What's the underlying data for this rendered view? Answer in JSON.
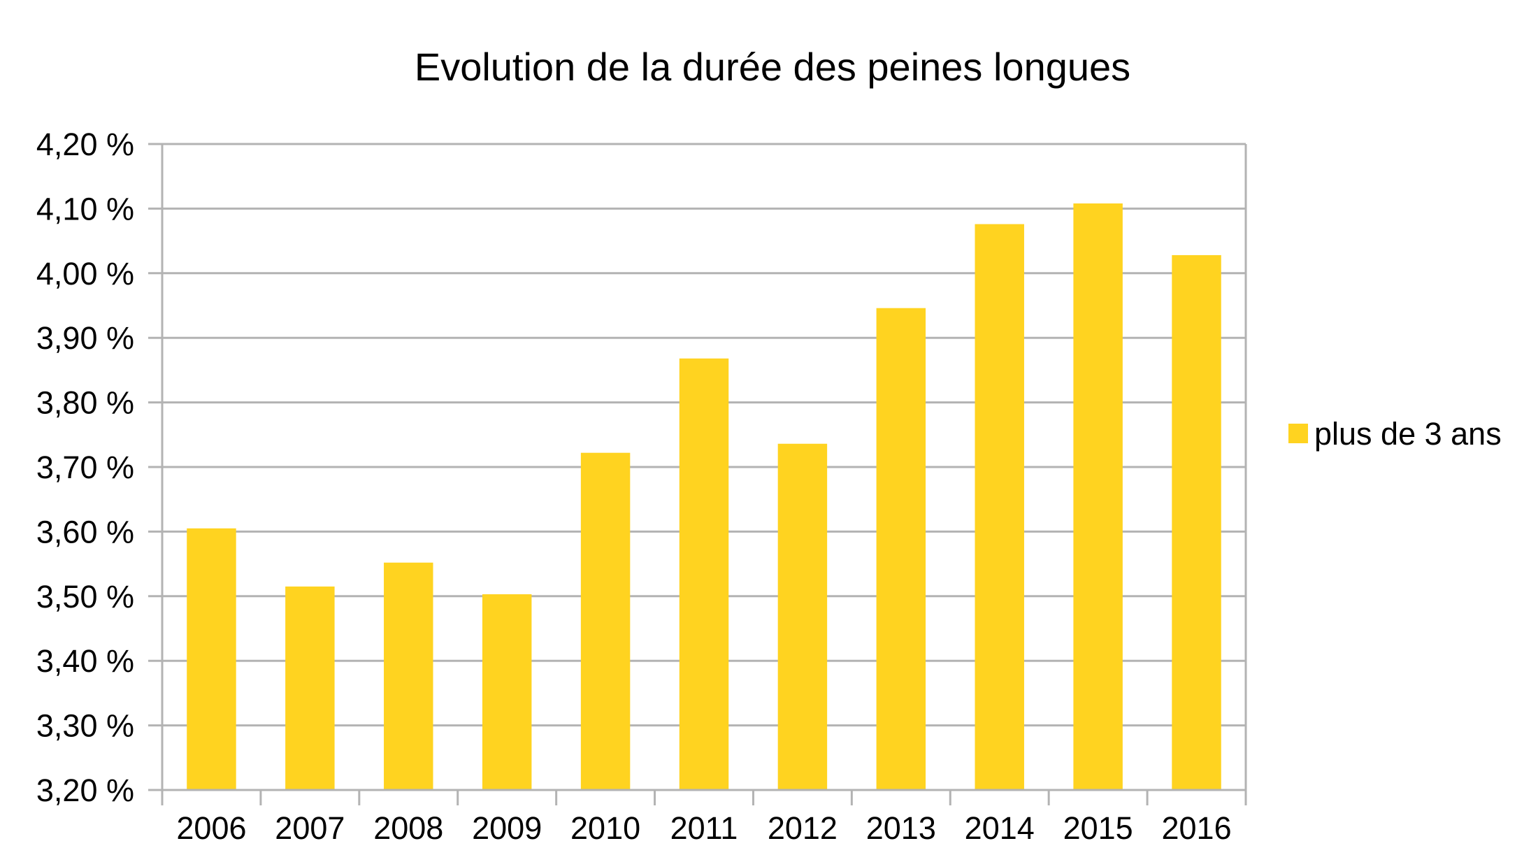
{
  "chart_data": {
    "type": "bar",
    "title": "Evolution de la durée des peines longues",
    "xlabel": "",
    "ylabel": "",
    "categories": [
      "2006",
      "2007",
      "2008",
      "2009",
      "2010",
      "2011",
      "2012",
      "2013",
      "2014",
      "2015",
      "2016"
    ],
    "series": [
      {
        "name": "plus de 3 ans",
        "color": "#FFD320",
        "values": [
          3.605,
          3.515,
          3.552,
          3.503,
          3.722,
          3.868,
          3.736,
          3.946,
          4.076,
          4.108,
          4.028
        ]
      }
    ],
    "ylim": [
      3.2,
      4.2
    ],
    "yticks": [
      3.2,
      3.3,
      3.4,
      3.5,
      3.6,
      3.7,
      3.8,
      3.9,
      4.0,
      4.1,
      4.2
    ],
    "ytick_labels": [
      "3,20 %",
      "3,30 %",
      "3,40 %",
      "3,50 %",
      "3,60 %",
      "3,70 %",
      "3,80 %",
      "3,90 %",
      "4,00 %",
      "4,10 %",
      "4,20 %"
    ],
    "grid": true,
    "legend_position": "right",
    "colors": {
      "grid": "#B3B3B3",
      "axis": "#B3B3B3",
      "text": "#000000"
    }
  }
}
